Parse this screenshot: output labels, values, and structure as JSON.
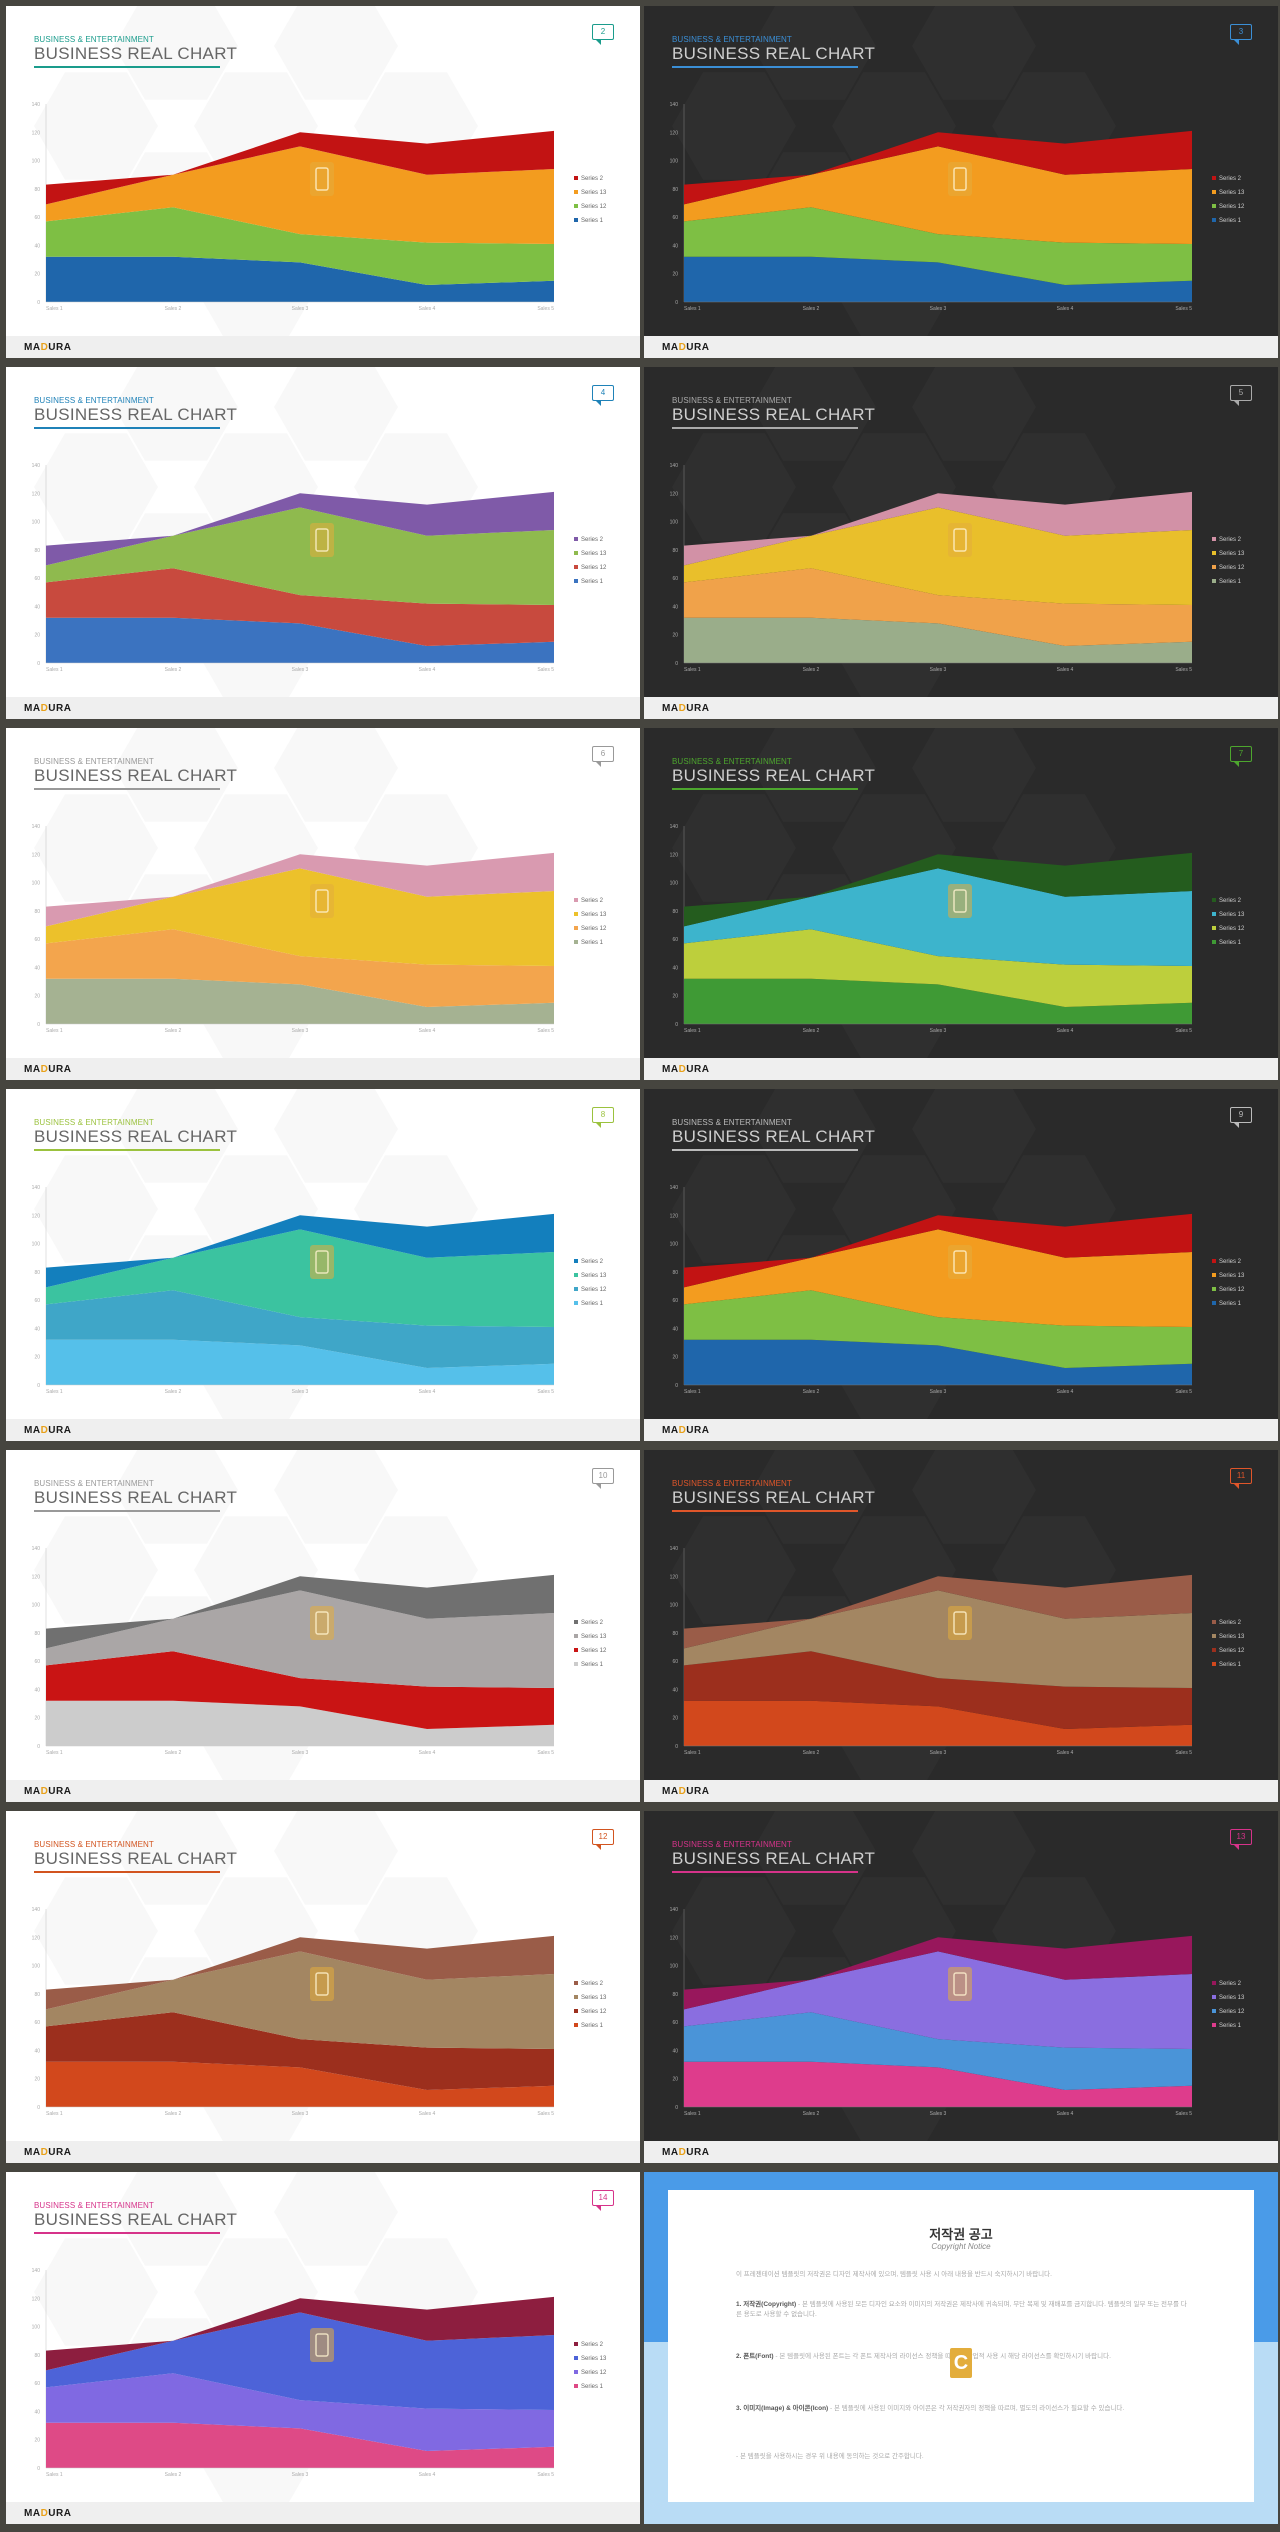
{
  "category_text": "BUSINESS & ENTERTAINMENT",
  "slide_title": "BUSINESS REAL CHART",
  "logo": {
    "part1": "MA",
    "part2": "D",
    "part3": "URA"
  },
  "chart_data": {
    "type": "area",
    "stacked": true,
    "categories": [
      "Sales 1",
      "Sales 2",
      "Sales 3",
      "Sales 4",
      "Sales 5"
    ],
    "yticks": [
      0,
      20,
      40,
      60,
      80,
      100,
      120,
      140
    ],
    "ylim": [
      0,
      140
    ],
    "series": [
      {
        "name": "Series 1",
        "values": [
          32,
          32,
          28,
          12,
          15
        ]
      },
      {
        "name": "Series 12",
        "values": [
          25,
          35,
          20,
          30,
          26
        ]
      },
      {
        "name": "Series 13",
        "values": [
          12,
          23,
          62,
          48,
          53
        ]
      },
      {
        "name": "Series 2",
        "values": [
          14,
          0,
          10,
          22,
          27
        ]
      }
    ],
    "legend_position": "right",
    "grid": false
  },
  "slides": [
    {
      "num": "2",
      "theme": "light",
      "accent": "#1a9c8c",
      "colors": [
        "#1f66ab",
        "#7ebf44",
        "#f39c1f",
        "#c21313"
      ]
    },
    {
      "num": "3",
      "theme": "dark",
      "accent": "#3b8fd6",
      "colors": [
        "#1f66ab",
        "#7ebf44",
        "#f39c1f",
        "#c21313"
      ]
    },
    {
      "num": "4",
      "theme": "light",
      "accent": "#1f82b8",
      "colors": [
        "#3b73c0",
        "#c84a3e",
        "#8fba4e",
        "#7f5aa8"
      ]
    },
    {
      "num": "5",
      "theme": "dark",
      "accent": "#aaaaaa",
      "colors": [
        "#9aad8a",
        "#f0a24a",
        "#e9bf2b",
        "#d291a6"
      ]
    },
    {
      "num": "6",
      "theme": "light",
      "accent": "#999999",
      "colors": [
        "#a5b292",
        "#f3a54d",
        "#ecc12b",
        "#d99ab0"
      ]
    },
    {
      "num": "7",
      "theme": "dark",
      "accent": "#4da62e",
      "colors": [
        "#3f9a35",
        "#bdcf3c",
        "#3db4cc",
        "#245c1e"
      ]
    },
    {
      "num": "8",
      "theme": "light",
      "accent": "#9bc23e",
      "colors": [
        "#55c0ea",
        "#3fa6c8",
        "#3bc3a0",
        "#137fbd"
      ]
    },
    {
      "num": "9",
      "theme": "dark",
      "accent": "#bbbbbb",
      "colors": [
        "#1f66ab",
        "#7ebf44",
        "#f39c1f",
        "#c21313"
      ]
    },
    {
      "num": "10",
      "theme": "light",
      "accent": "#999999",
      "colors": [
        "#cccccc",
        "#c91414",
        "#aaa6a6",
        "#707070"
      ]
    },
    {
      "num": "11",
      "theme": "dark",
      "accent": "#e0562a",
      "colors": [
        "#d2481c",
        "#9c2f1d",
        "#a38662",
        "#9a5c48"
      ]
    },
    {
      "num": "12",
      "theme": "light",
      "accent": "#d2541f",
      "colors": [
        "#d2481c",
        "#9c2f1d",
        "#a38662",
        "#9a5c48"
      ]
    },
    {
      "num": "13",
      "theme": "dark",
      "accent": "#d6338a",
      "colors": [
        "#de3c8c",
        "#4a94d8",
        "#8a6ee0",
        "#98175c"
      ]
    },
    {
      "num": "14",
      "theme": "light",
      "accent": "#d6338a",
      "colors": [
        "#de4a86",
        "#8069e2",
        "#4d63d8",
        "#8d1e3f"
      ]
    }
  ],
  "notice": {
    "title": "저작권 공고",
    "subtitle": "Copyright Notice",
    "icon": "C",
    "p1_lead": "",
    "p1": "이 프레젠테이션 템플릿의 저작권은 디자인 제작사에 있으며, 템플릿 사용 시 아래 내용을 반드시 숙지하시기 바랍니다.",
    "p2_lead": "1. 저작권(Copyright)",
    "p2": "- 본 템플릿에 사용된 모든 디자인 요소와 이미지의 저작권은 제작사에 귀속되며, 무단 복제 및 재배포를 금지합니다. 템플릿의 일부 또는 전부를 다른 용도로 사용할 수 없습니다.",
    "p3_lead": "2. 폰트(Font)",
    "p3": "- 본 템플릿에 사용된 폰트는 각 폰트 제작사의 라이선스 정책을 따르며, 상업적 사용 시 해당 라이선스를 확인하시기 바랍니다.",
    "p4_lead": "3. 이미지(Image) & 아이콘(Icon)",
    "p4": "- 본 템플릿에 사용된 이미지와 아이콘은 각 저작권자의 정책을 따르며, 별도의 라이선스가 필요할 수 있습니다.",
    "p5": "- 본 템플릿을 사용하시는 경우 위 내용에 동의하는 것으로 간주합니다."
  }
}
